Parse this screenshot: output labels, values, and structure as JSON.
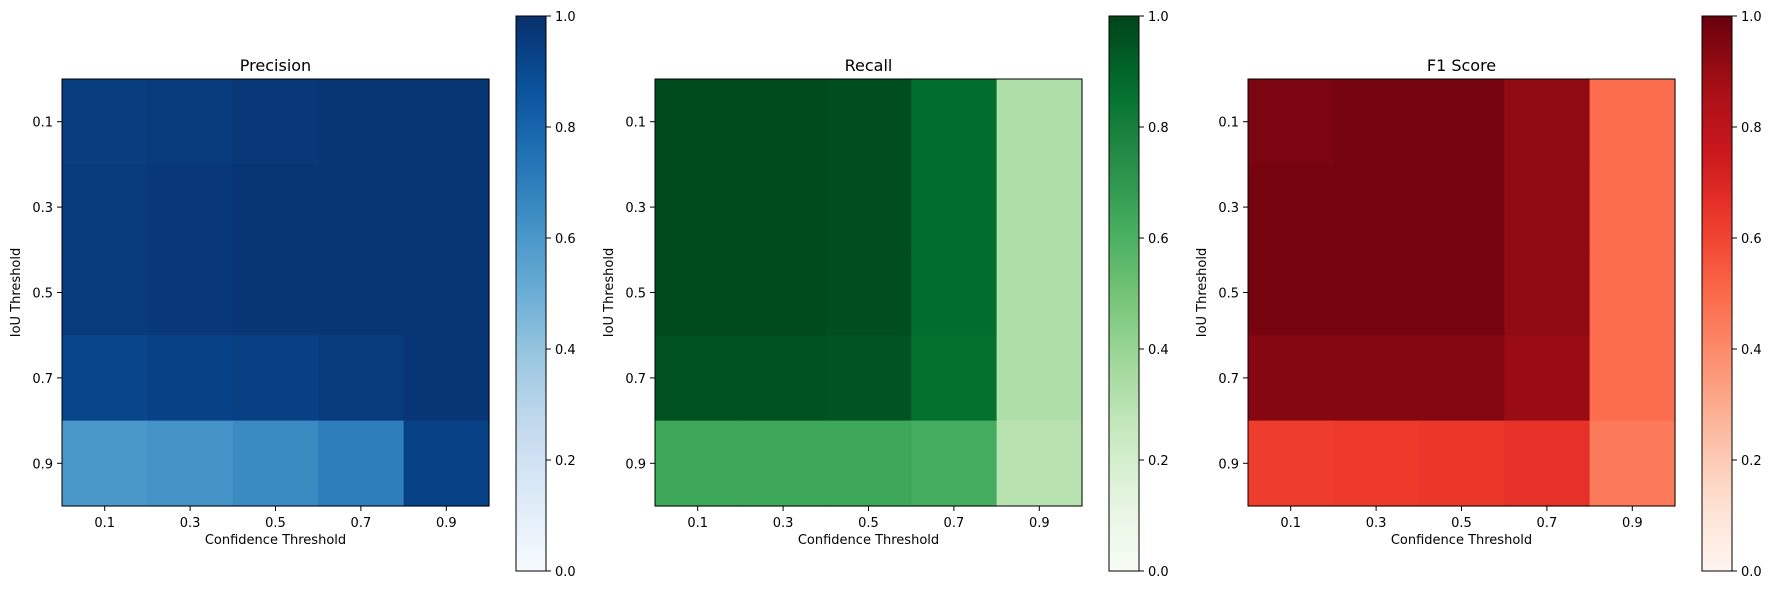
{
  "chart_data": [
    {
      "type": "heatmap",
      "title": "Precision",
      "colormap": "Blues",
      "xlabel": "Confidence Threshold",
      "ylabel": "IoU Threshold",
      "x_categories": [
        "0.1",
        "0.3",
        "0.5",
        "0.7",
        "0.9"
      ],
      "y_categories": [
        "0.1",
        "0.3",
        "0.5",
        "0.7",
        "0.9"
      ],
      "values": [
        [
          0.95,
          0.96,
          0.97,
          0.98,
          0.98
        ],
        [
          0.96,
          0.97,
          0.98,
          0.98,
          0.98
        ],
        [
          0.96,
          0.97,
          0.98,
          0.98,
          0.98
        ],
        [
          0.92,
          0.93,
          0.94,
          0.96,
          0.98
        ],
        [
          0.6,
          0.62,
          0.65,
          0.7,
          0.93
        ]
      ],
      "colorbar": {
        "range": [
          0,
          1
        ],
        "ticks": [
          "0.0",
          "0.2",
          "0.4",
          "0.6",
          "0.8",
          "1.0"
        ]
      }
    },
    {
      "type": "heatmap",
      "title": "Recall",
      "colormap": "Greens",
      "xlabel": "Confidence Threshold",
      "ylabel": "IoU Threshold",
      "x_categories": [
        "0.1",
        "0.3",
        "0.5",
        "0.7",
        "0.9"
      ],
      "y_categories": [
        "0.1",
        "0.3",
        "0.5",
        "0.7",
        "0.9"
      ],
      "values": [
        [
          0.98,
          0.98,
          0.97,
          0.87,
          0.33
        ],
        [
          0.98,
          0.98,
          0.97,
          0.87,
          0.33
        ],
        [
          0.98,
          0.98,
          0.97,
          0.87,
          0.33
        ],
        [
          0.96,
          0.96,
          0.95,
          0.86,
          0.33
        ],
        [
          0.64,
          0.64,
          0.64,
          0.62,
          0.3
        ]
      ],
      "colorbar": {
        "range": [
          0,
          1
        ],
        "ticks": [
          "0.0",
          "0.2",
          "0.4",
          "0.6",
          "0.8",
          "1.0"
        ]
      }
    },
    {
      "type": "heatmap",
      "title": "F1 Score",
      "colormap": "Reds",
      "xlabel": "Confidence Threshold",
      "ylabel": "IoU Threshold",
      "x_categories": [
        "0.1",
        "0.3",
        "0.5",
        "0.7",
        "0.9"
      ],
      "y_categories": [
        "0.1",
        "0.3",
        "0.5",
        "0.7",
        "0.9"
      ],
      "values": [
        [
          0.96,
          0.97,
          0.97,
          0.92,
          0.49
        ],
        [
          0.97,
          0.97,
          0.97,
          0.92,
          0.49
        ],
        [
          0.97,
          0.97,
          0.97,
          0.92,
          0.49
        ],
        [
          0.94,
          0.94,
          0.94,
          0.9,
          0.49
        ],
        [
          0.62,
          0.63,
          0.64,
          0.66,
          0.45
        ]
      ],
      "colorbar": {
        "range": [
          0,
          1
        ],
        "ticks": [
          "0.0",
          "0.2",
          "0.4",
          "0.6",
          "0.8",
          "1.0"
        ]
      }
    }
  ]
}
